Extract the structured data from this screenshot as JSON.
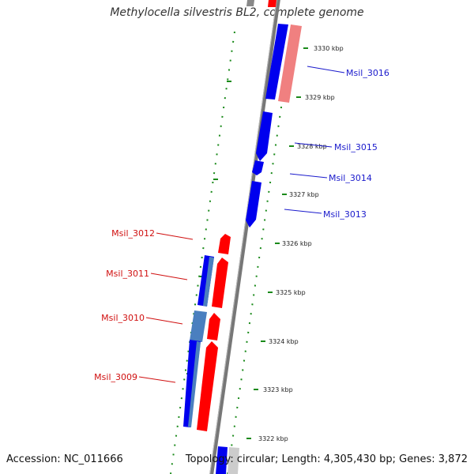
{
  "title": "Methylocella silvestris BL2, complete genome",
  "accession": "Accession: NC_011666",
  "topology": "Topology: circular; Length: 4,305,430 bp; Genes: 3,872",
  "scale_labels": [
    "3330 kbp",
    "3329 kbp",
    "3328 kbp",
    "3327 kbp",
    "3326 kbp",
    "3325 kbp",
    "3324 kbp",
    "3323 kbp",
    "3322 kbp"
  ],
  "genes": {
    "msil_3016": "Msil_3016",
    "msil_3015": "Msil_3015",
    "msil_3014": "Msil_3014",
    "msil_3013": "Msil_3013",
    "msil_3012": "Msil_3012",
    "msil_3011": "Msil_3011",
    "msil_3010": "Msil_3010",
    "msil_3009": "Msil_3009"
  },
  "colors": {
    "forward_gene": "#ff0000",
    "reverse_gene": "#0000ee",
    "pseudo_forward": "#f08080",
    "pseudo_reverse": "#4a7fbf",
    "backbone": "#888888",
    "scale": "#118811"
  }
}
